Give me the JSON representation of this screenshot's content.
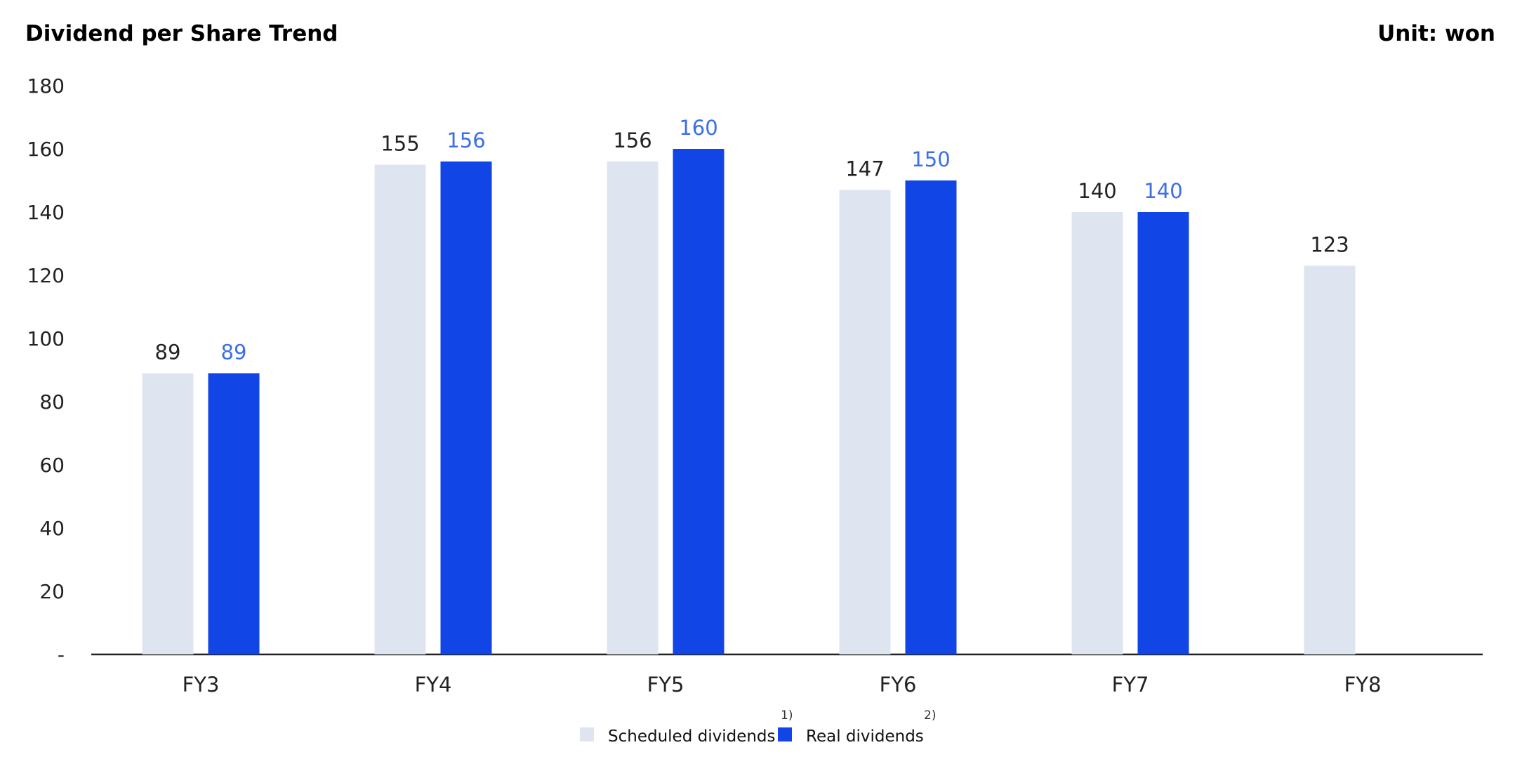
{
  "header": {
    "title": "Dividend per Share Trend",
    "unit": "Unit: won"
  },
  "colors": {
    "scheduled": "#dfe5f0",
    "real": "#1245e6",
    "real_label": "#3b6ee8",
    "axis": "#222222"
  },
  "chart_data": {
    "type": "bar",
    "title": "Dividend per Share Trend",
    "xlabel": "",
    "ylabel": "",
    "unit": "won",
    "categories": [
      "FY3",
      "FY4",
      "FY5",
      "FY6",
      "FY7",
      "FY8"
    ],
    "series": [
      {
        "name": "Scheduled dividends",
        "footnote": "1)",
        "values": [
          89,
          155,
          156,
          147,
          140,
          123
        ]
      },
      {
        "name": "Real dividends",
        "footnote": "2)",
        "values": [
          89,
          156,
          160,
          150,
          140,
          null
        ]
      }
    ],
    "ylim": [
      0,
      180
    ],
    "yticks": [
      0,
      20,
      40,
      60,
      80,
      100,
      120,
      140,
      160,
      180
    ],
    "ytick_labels": [
      "-",
      "20",
      "40",
      "60",
      "80",
      "100",
      "120",
      "140",
      "160",
      "180"
    ],
    "grid": false,
    "legend": "bottom-center"
  }
}
